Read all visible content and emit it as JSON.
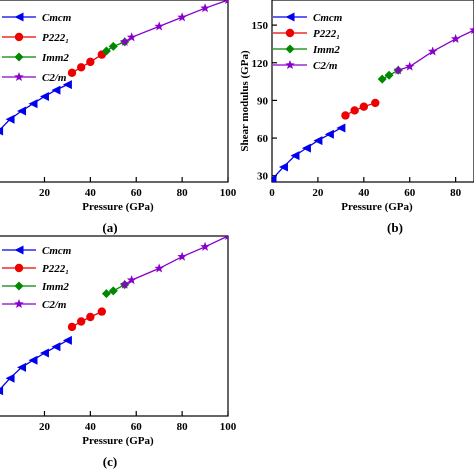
{
  "chart_data": [
    {
      "type": "line",
      "panel_label": "(a)",
      "xlabel": "Pressure (GPa)",
      "ylabel": "",
      "xlim": [
        -2,
        100
      ],
      "ylim": [
        0,
        100
      ],
      "x_ticks": [
        20,
        40,
        60,
        80,
        100
      ],
      "y_ticks": [],
      "legend": "top-left",
      "series": [
        {
          "name": "Cmcm",
          "color": "#0000ee",
          "marker": "triangle-left",
          "x": [
            0,
            5,
            10,
            15,
            20,
            25,
            30
          ],
          "y": [
            28,
            34.5,
            39,
            43,
            47,
            50.5,
            53.5
          ]
        },
        {
          "name": "P222₁",
          "color": "#ee0000",
          "marker": "circle",
          "x": [
            32,
            36,
            40,
            45
          ],
          "y": [
            60,
            63,
            66,
            70
          ]
        },
        {
          "name": "Imm2",
          "color": "#008800",
          "marker": "diamond",
          "x": [
            47,
            50,
            55
          ],
          "y": [
            72,
            74.5,
            77
          ]
        },
        {
          "name": "C2/m",
          "color": "#8800cc",
          "marker": "star",
          "x": [
            55,
            58,
            70,
            80,
            90,
            100
          ],
          "y": [
            77,
            79.5,
            85.5,
            90.5,
            95.5,
            100
          ]
        }
      ]
    },
    {
      "type": "line",
      "panel_label": "(b)",
      "xlabel": "Pressure (GPa)",
      "ylabel": "Shear modulus (GPa)",
      "xlim": [
        0,
        88
      ],
      "ylim": [
        25,
        170
      ],
      "x_ticks": [
        0,
        20,
        40,
        60,
        80
      ],
      "y_ticks": [
        30,
        60,
        90,
        120,
        150
      ],
      "legend": "top-left",
      "series": [
        {
          "name": "Cmcm",
          "color": "#0000ee",
          "marker": "triangle-left",
          "x": [
            0,
            5,
            10,
            15,
            20,
            25,
            30
          ],
          "y": [
            27,
            37,
            46,
            52,
            58,
            63,
            68
          ]
        },
        {
          "name": "P222₁",
          "color": "#ee0000",
          "marker": "circle",
          "x": [
            32,
            36,
            40,
            45
          ],
          "y": [
            78,
            82,
            85,
            88
          ]
        },
        {
          "name": "Imm2",
          "color": "#008800",
          "marker": "diamond",
          "x": [
            48,
            51,
            55
          ],
          "y": [
            107,
            110,
            114
          ]
        },
        {
          "name": "C2/m",
          "color": "#8800cc",
          "marker": "star",
          "x": [
            55,
            60,
            70,
            80,
            88
          ],
          "y": [
            114,
            117,
            129,
            139,
            146
          ]
        }
      ]
    },
    {
      "type": "line",
      "panel_label": "(c)",
      "xlabel": "Pressure (GPa)",
      "ylabel": "",
      "xlim": [
        -2,
        100
      ],
      "ylim": [
        0,
        100
      ],
      "x_ticks": [
        20,
        40,
        60,
        80,
        100
      ],
      "y_ticks": [],
      "legend": "top-left",
      "series": [
        {
          "name": "Cmcm",
          "color": "#0000ee",
          "marker": "triangle-left",
          "x": [
            0,
            5,
            10,
            15,
            20,
            25,
            30
          ],
          "y": [
            14,
            21,
            27,
            31,
            35,
            38.5,
            42
          ]
        },
        {
          "name": "P222₁",
          "color": "#ee0000",
          "marker": "circle",
          "x": [
            32,
            36,
            40,
            45
          ],
          "y": [
            49.5,
            52.5,
            55,
            58
          ]
        },
        {
          "name": "Imm2",
          "color": "#008800",
          "marker": "diamond",
          "x": [
            47,
            50,
            55
          ],
          "y": [
            68,
            69.5,
            73
          ]
        },
        {
          "name": "C2/m",
          "color": "#8800cc",
          "marker": "star",
          "x": [
            55,
            58,
            70,
            80,
            90,
            100
          ],
          "y": [
            73,
            75.5,
            82,
            88.5,
            94,
            100
          ]
        }
      ]
    }
  ]
}
